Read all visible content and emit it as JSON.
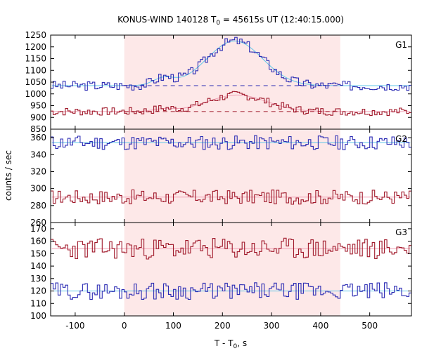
{
  "chart_data": {
    "type": "line",
    "title": "KONUS-WIND 140128 T",
    "title_sub": "0",
    "title_rest": " = 45615s UT (12:40:15.000)",
    "xlabel": "T - T",
    "xlabel_sub": "0",
    "xlabel_rest": ", s",
    "ylabel": "counts / sec",
    "xlim": [
      -150,
      585
    ],
    "xticks": [
      -100,
      0,
      100,
      200,
      300,
      400,
      500
    ],
    "highlight": {
      "x_start": 0,
      "x_end": 440,
      "color": "#fde8e8"
    },
    "colors": {
      "blue": "#2c2cb4",
      "red": "#a0182a",
      "fit_blue": "#5ec6e8",
      "fit_red": "#f0a0b4",
      "bg_dash_blue": "#2c2cb4",
      "bg_dash_red": "#a0182a"
    },
    "panels": [
      {
        "name": "G1",
        "ylim": [
          850,
          1250
        ],
        "yticks": [
          850,
          900,
          950,
          1000,
          1050,
          1100,
          1150,
          1200,
          1250
        ],
        "series": [
          {
            "color": "blue",
            "bg": 1035,
            "peak": 190,
            "peak_x": 225,
            "peak_w": 80,
            "second": 30,
            "noise": 12,
            "seed": 3
          },
          {
            "color": "red",
            "bg": 925,
            "peak": 70,
            "peak_x": 230,
            "peak_w": 85,
            "second": 10,
            "noise": 10,
            "seed": 7
          }
        ],
        "background_levels": [
          1035,
          925
        ]
      },
      {
        "name": "G2",
        "ylim": [
          260,
          370
        ],
        "yticks": [
          260,
          280,
          300,
          320,
          340,
          360
        ],
        "series": [
          {
            "color": "blue",
            "bg": 354,
            "peak": 0,
            "peak_x": 0,
            "peak_w": 1,
            "second": 0,
            "noise": 5,
            "seed": 11
          },
          {
            "color": "red",
            "bg": 290,
            "peak": 0,
            "peak_x": 0,
            "peak_w": 1,
            "second": 0,
            "noise": 5,
            "seed": 17
          }
        ],
        "background_levels": []
      },
      {
        "name": "G3",
        "ylim": [
          100,
          175
        ],
        "yticks": [
          100,
          110,
          120,
          130,
          140,
          150,
          160,
          170
        ],
        "series": [
          {
            "color": "red",
            "bg": 154,
            "peak": 0,
            "peak_x": 0,
            "peak_w": 1,
            "second": 0,
            "noise": 5,
            "seed": 23
          },
          {
            "color": "blue",
            "bg": 120,
            "peak": 0,
            "peak_x": 0,
            "peak_w": 1,
            "second": 0,
            "noise": 4,
            "seed": 29
          }
        ],
        "background_levels": []
      }
    ]
  }
}
